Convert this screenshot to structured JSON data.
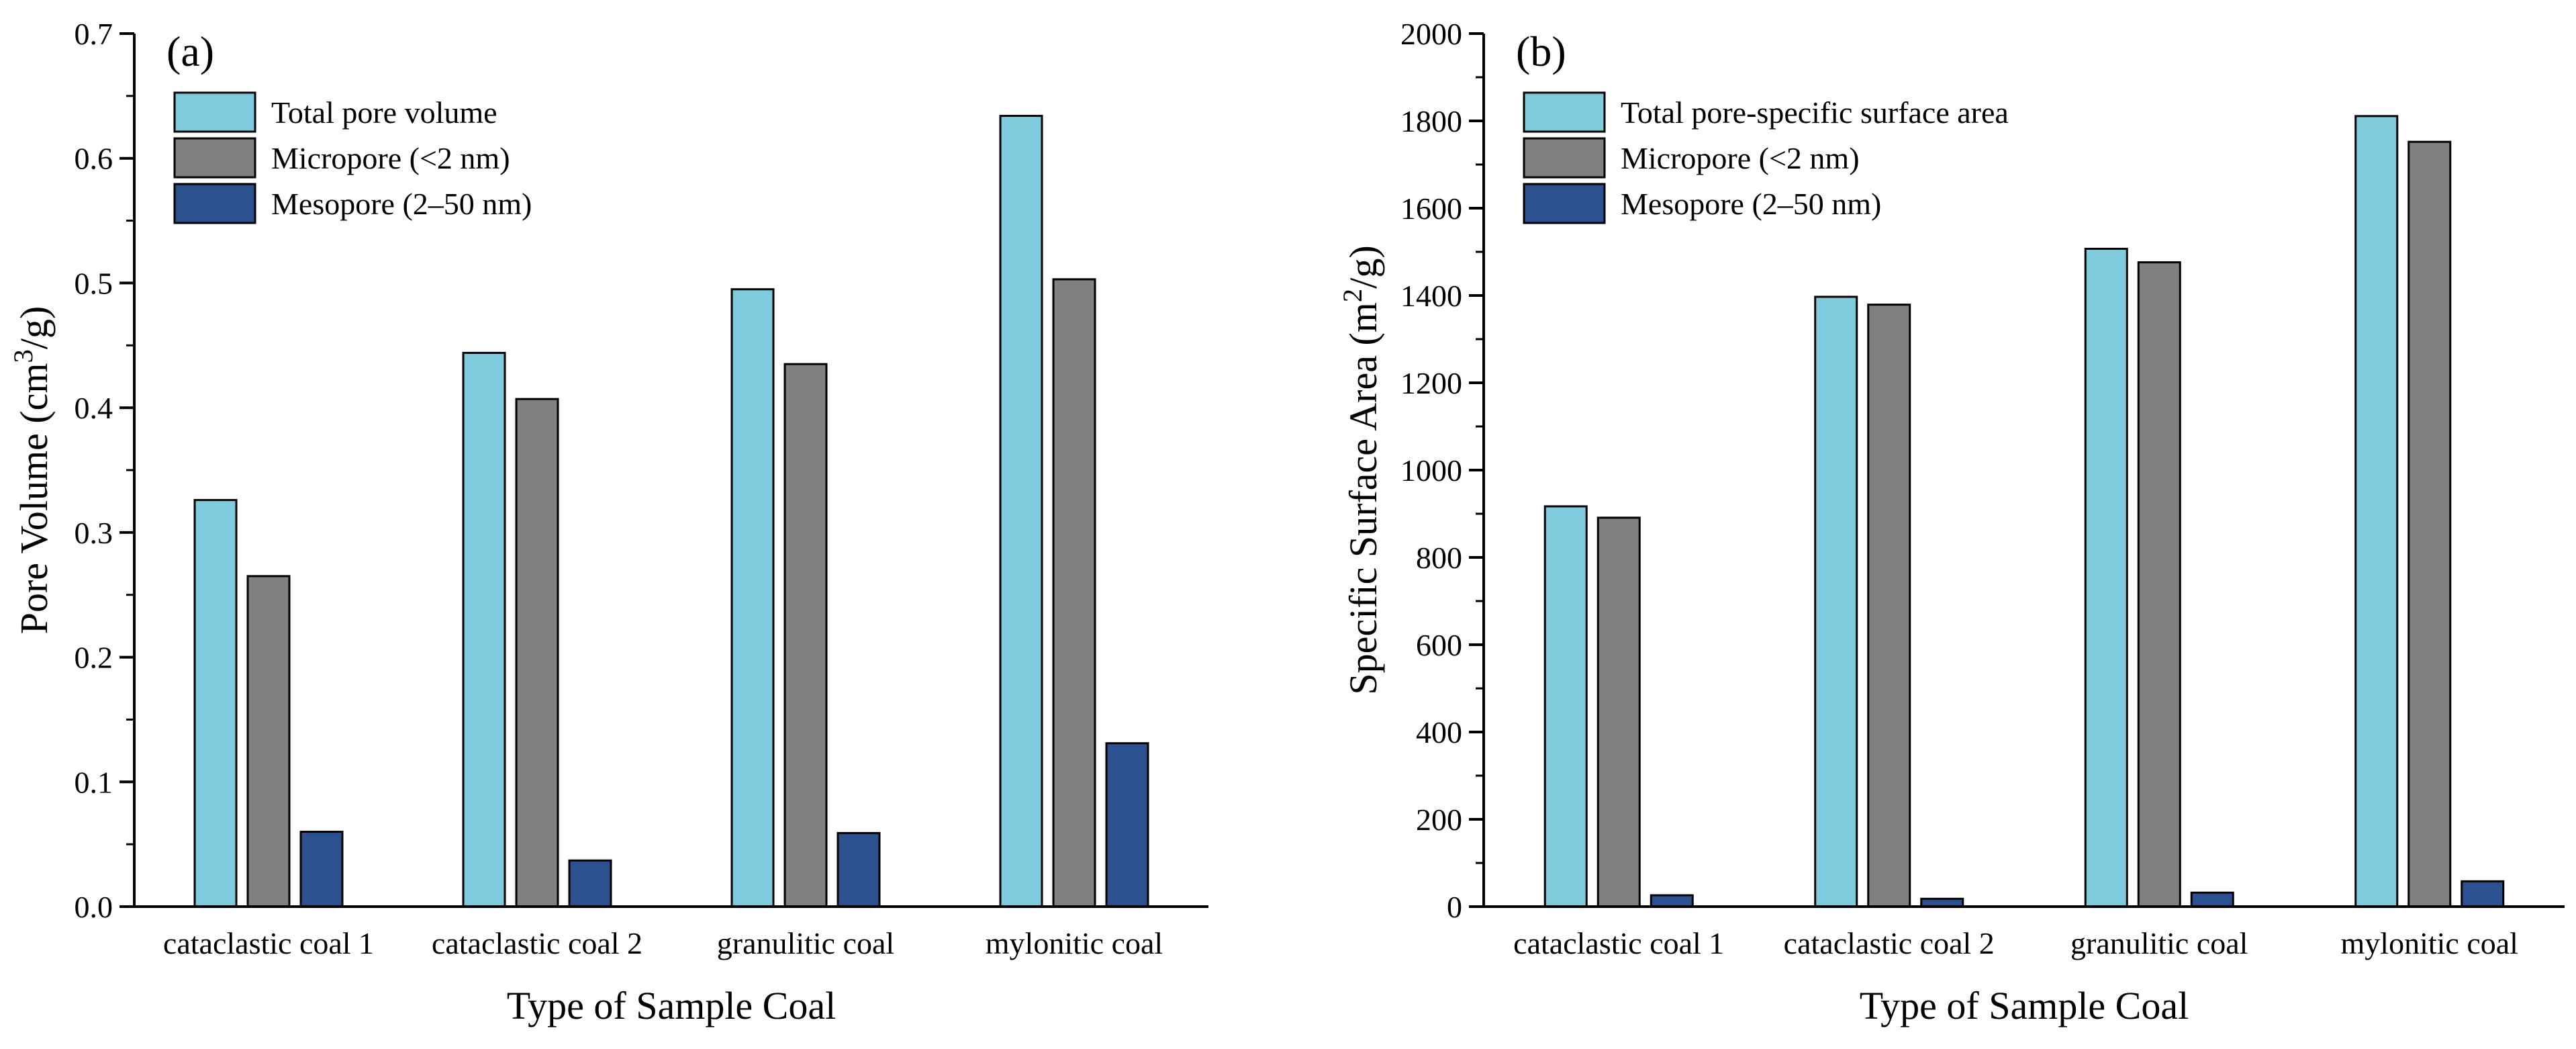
{
  "chart_data": [
    {
      "type": "bar",
      "panel_label": "(a)",
      "categories": [
        "cataclastic coal 1",
        "cataclastic coal 2",
        "granulitic coal",
        "mylonitic coal"
      ],
      "series": [
        {
          "name": "Total pore volume",
          "color": "#7ecbdd",
          "values": [
            0.326,
            0.444,
            0.495,
            0.634
          ]
        },
        {
          "name": "Micropore (<2 nm)",
          "color": "#808080",
          "values": [
            0.265,
            0.407,
            0.435,
            0.503
          ]
        },
        {
          "name": "Mesopore (2–50 nm)",
          "color": "#2c5190",
          "values": [
            0.06,
            0.037,
            0.059,
            0.131
          ]
        }
      ],
      "xlabel": "Type of Sample Coal",
      "ylabel": "Pore Volume (cm³/g)",
      "ylim": [
        0,
        0.7
      ],
      "yticks": [
        "0.0",
        "0.1",
        "0.2",
        "0.3",
        "0.4",
        "0.5",
        "0.6",
        "0.7"
      ],
      "legend_position": "top-left",
      "grid": false
    },
    {
      "type": "bar",
      "panel_label": "(b)",
      "categories": [
        "cataclastic coal 1",
        "cataclastic coal 2",
        "granulitic coal",
        "mylonitic coal"
      ],
      "series": [
        {
          "name": "Total pore-specific surface area",
          "color": "#7ecbdd",
          "values": [
            917,
            1397,
            1507,
            1811
          ]
        },
        {
          "name": "Micropore (<2 nm)",
          "color": "#808080",
          "values": [
            891,
            1379,
            1476,
            1752
          ]
        },
        {
          "name": "Mesopore (2–50 nm)",
          "color": "#2c5190",
          "values": [
            26,
            18,
            32,
            58
          ]
        }
      ],
      "xlabel": "Type of Sample Coal",
      "ylabel": "Specific Surface Area (m²/g)",
      "ylim": [
        0,
        2000
      ],
      "yticks": [
        "0",
        "200",
        "400",
        "600",
        "800",
        "1000",
        "1200",
        "1400",
        "1600",
        "1800",
        "2000"
      ],
      "legend_position": "top-left",
      "grid": false
    }
  ]
}
